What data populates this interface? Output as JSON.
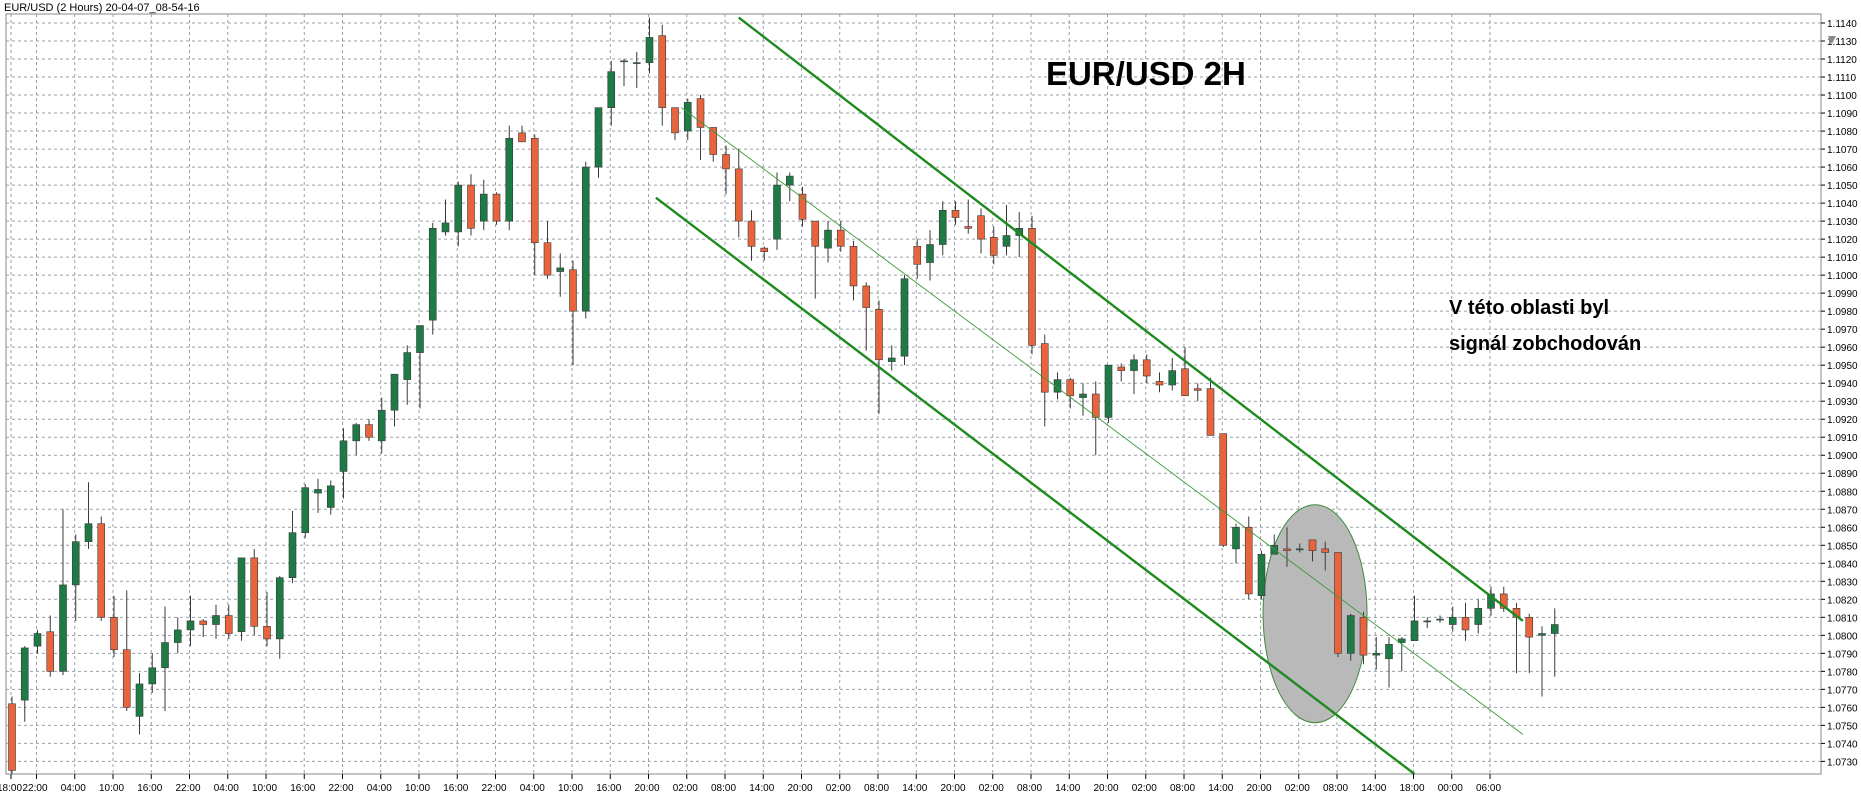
{
  "window": {
    "header": "EUR/USD (2 Hours) 20-04-07_08-54-16"
  },
  "chart_data": {
    "type": "candlestick",
    "symbol": "EUR/USD",
    "timeframe": "2 Hours",
    "title": "EUR/USD  2H",
    "annotation": {
      "lines": [
        "V této oblasti byl",
        "signál zobchodován"
      ]
    },
    "ylim": [
      1.0723,
      1.1145
    ],
    "grid": true,
    "colors": {
      "bull": "#1e7b46",
      "bear": "#e8643c",
      "candle_border": "#3a3a3a",
      "grid": "#9aa0a6",
      "channel": "#1f8a1f",
      "midline": "#3b9a3b",
      "ellipse_fill": "#b9b9b9",
      "ellipse_stroke": "#3c8c3c"
    },
    "y_ticks": [
      "1.0730",
      "1.0740",
      "1.0750",
      "1.0760",
      "1.0770",
      "1.0780",
      "1.0790",
      "1.0800",
      "1.0810",
      "1.0820",
      "1.0830",
      "1.0840",
      "1.0850",
      "1.0860",
      "1.0870",
      "1.0880",
      "1.0890",
      "1.0900",
      "1.0910",
      "1.0920",
      "1.0930",
      "1.0940",
      "1.0950",
      "1.0960",
      "1.0970",
      "1.0980",
      "1.0990",
      "1.1000",
      "1.1010",
      "1.1020",
      "1.1030",
      "1.1040",
      "1.1050",
      "1.1060",
      "1.1070",
      "1.1080",
      "1.1090",
      "1.1100",
      "1.1110",
      "1.1120",
      "1.1130",
      "1.1140"
    ],
    "x_ticks": [
      {
        "i": 0,
        "label": "18:00"
      },
      {
        "i": 2,
        "label": "22:00"
      },
      {
        "i": 5,
        "label": "04:00"
      },
      {
        "i": 8,
        "label": "10:00"
      },
      {
        "i": 11,
        "label": "16:00"
      },
      {
        "i": 14,
        "label": "22:00"
      },
      {
        "i": 17,
        "label": "04:00"
      },
      {
        "i": 20,
        "label": "10:00"
      },
      {
        "i": 23,
        "label": "16:00"
      },
      {
        "i": 26,
        "label": "22:00"
      },
      {
        "i": 29,
        "label": "04:00"
      },
      {
        "i": 32,
        "label": "10:00"
      },
      {
        "i": 35,
        "label": "16:00"
      },
      {
        "i": 38,
        "label": "22:00"
      },
      {
        "i": 41,
        "label": "04:00"
      },
      {
        "i": 44,
        "label": "10:00"
      },
      {
        "i": 47,
        "label": "16:00"
      },
      {
        "i": 50,
        "label": "20:00"
      },
      {
        "i": 53,
        "label": "02:00"
      },
      {
        "i": 56,
        "label": "08:00"
      },
      {
        "i": 59,
        "label": "14:00"
      },
      {
        "i": 62,
        "label": "20:00"
      },
      {
        "i": 65,
        "label": "02:00"
      },
      {
        "i": 68,
        "label": "08:00"
      },
      {
        "i": 71,
        "label": "14:00"
      },
      {
        "i": 74,
        "label": "20:00"
      },
      {
        "i": 77,
        "label": "02:00"
      },
      {
        "i": 80,
        "label": "08:00"
      },
      {
        "i": 83,
        "label": "14:00"
      },
      {
        "i": 86,
        "label": "20:00"
      },
      {
        "i": 89,
        "label": "02:00"
      },
      {
        "i": 92,
        "label": "08:00"
      },
      {
        "i": 95,
        "label": "14:00"
      },
      {
        "i": 98,
        "label": "20:00"
      },
      {
        "i": 101,
        "label": "02:00"
      },
      {
        "i": 104,
        "label": "08:00"
      },
      {
        "i": 107,
        "label": "14:00"
      },
      {
        "i": 110,
        "label": "18:00"
      },
      {
        "i": 113,
        "label": "00:00"
      },
      {
        "i": 116,
        "label": "06:00"
      }
    ],
    "candles": [
      [
        1.0762,
        1.0766,
        1.0723,
        1.0725
      ],
      [
        1.0764,
        1.0794,
        1.0752,
        1.0793
      ],
      [
        1.0794,
        1.0803,
        1.079,
        1.0801
      ],
      [
        1.0802,
        1.0811,
        1.0777,
        1.078
      ],
      [
        1.078,
        1.087,
        1.0778,
        1.0828
      ],
      [
        1.0828,
        1.0856,
        1.0808,
        1.0852
      ],
      [
        1.0852,
        1.0885,
        1.0848,
        1.0862
      ],
      [
        1.0862,
        1.0866,
        1.0808,
        1.081
      ],
      [
        1.081,
        1.0822,
        1.0788,
        1.0792
      ],
      [
        1.0792,
        1.0825,
        1.0758,
        1.076
      ],
      [
        1.0755,
        1.0779,
        1.0745,
        1.0773
      ],
      [
        1.0773,
        1.079,
        1.0768,
        1.0782
      ],
      [
        1.0782,
        1.0816,
        1.0758,
        1.0796
      ],
      [
        1.0796,
        1.081,
        1.079,
        1.0803
      ],
      [
        1.0803,
        1.0822,
        1.0794,
        1.0808
      ],
      [
        1.0808,
        1.0809,
        1.0799,
        1.0806
      ],
      [
        1.0806,
        1.0817,
        1.0798,
        1.0811
      ],
      [
        1.0811,
        1.0817,
        1.0798,
        1.0801
      ],
      [
        1.0802,
        1.0843,
        1.0797,
        1.0843
      ],
      [
        1.0843,
        1.0848,
        1.08,
        1.0805
      ],
      [
        1.0805,
        1.0824,
        1.0794,
        1.0798
      ],
      [
        1.0798,
        1.0833,
        1.0787,
        1.0832
      ],
      [
        1.0832,
        1.0869,
        1.0829,
        1.0857
      ],
      [
        1.0857,
        1.0884,
        1.0854,
        1.0882
      ],
      [
        1.0879,
        1.0887,
        1.0868,
        1.0881
      ],
      [
        1.0871,
        1.0886,
        1.0867,
        1.0883
      ],
      [
        1.0891,
        1.0915,
        1.0876,
        1.0908
      ],
      [
        1.0908,
        1.0918,
        1.09,
        1.0917
      ],
      [
        1.0917,
        1.092,
        1.0908,
        1.091
      ],
      [
        1.0908,
        1.0932,
        1.0901,
        1.0925
      ],
      [
        1.0925,
        1.0945,
        1.0916,
        1.0945
      ],
      [
        1.0942,
        1.0961,
        1.0928,
        1.0957
      ],
      [
        1.0957,
        1.0972,
        1.0926,
        1.0972
      ],
      [
        1.0975,
        1.1029,
        1.0967,
        1.1026
      ],
      [
        1.1024,
        1.1042,
        1.1022,
        1.1029
      ],
      [
        1.1024,
        1.1052,
        1.1016,
        1.105
      ],
      [
        1.105,
        1.1056,
        1.1022,
        1.1026
      ],
      [
        1.103,
        1.1053,
        1.1025,
        1.1045
      ],
      [
        1.1045,
        1.1046,
        1.1028,
        1.103
      ],
      [
        1.103,
        1.1083,
        1.1025,
        1.1076
      ],
      [
        1.1079,
        1.1083,
        1.1074,
        1.1074
      ],
      [
        1.1076,
        1.1078,
        1.1,
        1.1018
      ],
      [
        1.1018,
        1.103,
        1.0998,
        1.1
      ],
      [
        1.1002,
        1.1012,
        1.0988,
        1.1004
      ],
      [
        1.1003,
        1.1008,
        1.095,
        1.098
      ],
      [
        1.098,
        1.1063,
        1.0976,
        1.106
      ],
      [
        1.106,
        1.1092,
        1.1054,
        1.1093
      ],
      [
        1.1093,
        1.1119,
        1.1083,
        1.1113
      ],
      [
        1.1119,
        1.112,
        1.1105,
        1.1119
      ],
      [
        1.1118,
        1.1124,
        1.1104,
        1.1118
      ],
      [
        1.1118,
        1.1143,
        1.1112,
        1.1132
      ],
      [
        1.1133,
        1.1139,
        1.1083,
        1.1093
      ],
      [
        1.1093,
        1.1093,
        1.1075,
        1.1079
      ],
      [
        1.108,
        1.1098,
        1.1075,
        1.1096
      ],
      [
        1.1098,
        1.11,
        1.1064,
        1.1082
      ],
      [
        1.1082,
        1.1082,
        1.1063,
        1.1067
      ],
      [
        1.1067,
        1.1072,
        1.1045,
        1.1059
      ],
      [
        1.1059,
        1.107,
        1.1021,
        1.103
      ],
      [
        1.103,
        1.1036,
        1.1008,
        1.1016
      ],
      [
        1.1015,
        1.1016,
        1.1008,
        1.1013
      ],
      [
        1.102,
        1.1057,
        1.1014,
        1.105
      ],
      [
        1.105,
        1.1057,
        1.1041,
        1.1055
      ],
      [
        1.1045,
        1.1049,
        1.1027,
        1.1031
      ],
      [
        1.103,
        1.103,
        1.0987,
        1.1016
      ],
      [
        1.1015,
        1.103,
        1.1007,
        1.1025
      ],
      [
        1.1025,
        1.103,
        1.1013,
        1.1016
      ],
      [
        1.1016,
        1.1019,
        1.0986,
        1.0994
      ],
      [
        1.0994,
        1.0996,
        1.0958,
        1.0982
      ],
      [
        1.0981,
        1.0986,
        1.0923,
        1.0953
      ],
      [
        1.0952,
        1.0961,
        1.0947,
        1.0954
      ],
      [
        1.0955,
        1.1,
        1.095,
        1.0998
      ],
      [
        1.1016,
        1.102,
        1.0998,
        1.1006
      ],
      [
        1.1007,
        1.1025,
        1.0997,
        1.1017
      ],
      [
        1.1017,
        1.1041,
        1.1011,
        1.1036
      ],
      [
        1.1036,
        1.1041,
        1.1028,
        1.1032
      ],
      [
        1.1027,
        1.1042,
        1.1023,
        1.1026
      ],
      [
        1.1033,
        1.1037,
        1.1012,
        1.102
      ],
      [
        1.1021,
        1.1027,
        1.1006,
        1.1011
      ],
      [
        1.1016,
        1.1039,
        1.1011,
        1.1022
      ],
      [
        1.1022,
        1.1035,
        1.101,
        1.1026
      ],
      [
        1.1026,
        1.1033,
        1.0956,
        1.0961
      ],
      [
        1.0962,
        1.0967,
        1.0916,
        1.0935
      ],
      [
        1.0935,
        1.0946,
        1.0931,
        1.0942
      ],
      [
        1.0942,
        1.0943,
        1.0926,
        1.0933
      ],
      [
        1.0932,
        1.094,
        1.0922,
        1.0934
      ],
      [
        1.0934,
        1.0941,
        1.09,
        1.0921
      ],
      [
        1.0921,
        1.095,
        1.0918,
        1.095
      ],
      [
        1.0949,
        1.0951,
        1.0941,
        1.0947
      ],
      [
        1.0947,
        1.0956,
        1.0934,
        1.0953
      ],
      [
        1.0953,
        1.0956,
        1.094,
        1.0944
      ],
      [
        1.0941,
        1.0946,
        1.0935,
        1.0939
      ],
      [
        1.0939,
        1.0954,
        1.0936,
        1.0947
      ],
      [
        1.0948,
        1.096,
        1.0933,
        1.0933
      ],
      [
        1.0937,
        1.094,
        1.093,
        1.0936
      ],
      [
        1.0937,
        1.0943,
        1.0911,
        1.0911
      ],
      [
        1.0912,
        1.0912,
        1.0849,
        1.085
      ],
      [
        1.0848,
        1.0862,
        1.084,
        1.086
      ],
      [
        1.086,
        1.0866,
        1.082,
        1.0823
      ],
      [
        1.0822,
        1.0847,
        1.082,
        1.0845
      ],
      [
        1.0845,
        1.0856,
        1.0848,
        1.085
      ],
      [
        1.0848,
        1.086,
        1.0838,
        1.0847
      ],
      [
        1.0848,
        1.0851,
        1.0846,
        1.0848
      ],
      [
        1.0853,
        1.0853,
        1.0841,
        1.0847
      ],
      [
        1.0848,
        1.0852,
        1.0836,
        1.0846
      ],
      [
        1.0846,
        1.0846,
        1.0788,
        1.079
      ],
      [
        1.079,
        1.0812,
        1.0786,
        1.0811
      ],
      [
        1.081,
        1.0813,
        1.0784,
        1.0789
      ],
      [
        1.0789,
        1.0799,
        1.0781,
        1.079
      ],
      [
        1.0787,
        1.0799,
        1.0771,
        1.0795
      ],
      [
        1.0796,
        1.0799,
        1.078,
        1.0798
      ],
      [
        1.0797,
        1.0822,
        1.0797,
        1.0808
      ],
      [
        1.0808,
        1.081,
        1.0804,
        1.0808
      ],
      [
        1.0809,
        1.0811,
        1.0807,
        1.0809
      ],
      [
        1.0806,
        1.0816,
        1.0802,
        1.081
      ],
      [
        1.081,
        1.0818,
        1.0797,
        1.0803
      ],
      [
        1.0806,
        1.082,
        1.0801,
        1.0815
      ],
      [
        1.0815,
        1.0827,
        1.0811,
        1.0823
      ],
      [
        1.0823,
        1.0827,
        1.0813,
        1.0815
      ],
      [
        1.0815,
        1.0818,
        1.0779,
        1.081
      ],
      [
        1.081,
        1.0812,
        1.0779,
        1.0799
      ],
      [
        1.08,
        1.0805,
        1.0766,
        1.0801
      ],
      [
        1.0801,
        1.0815,
        1.0777,
        1.0806
      ]
    ]
  }
}
